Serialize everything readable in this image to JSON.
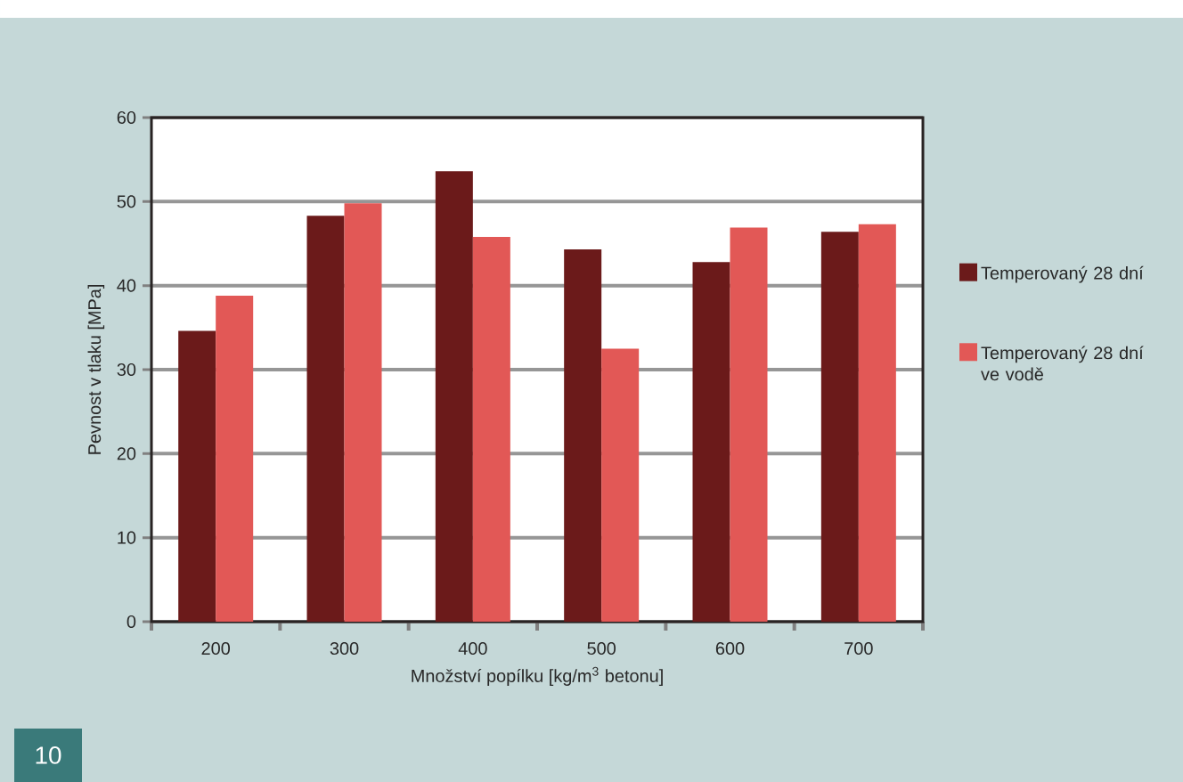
{
  "chart_data": {
    "type": "bar",
    "xlabel": "Množství popílku [kg/m$^{3}$ betonu]",
    "ylabel": "Pevnost v tlaku [MPa]",
    "categories": [
      "200",
      "300",
      "400",
      "500",
      "600",
      "700"
    ],
    "series": [
      {
        "name": "Temperovaný 28 dní",
        "color": "#6b1a1a",
        "values": [
          34.6,
          48.3,
          53.6,
          44.3,
          42.8,
          46.4
        ]
      },
      {
        "name": "Temperovaný 28 dní ve vodě",
        "color": "#e25856",
        "values": [
          38.8,
          49.8,
          45.8,
          32.5,
          46.9,
          47.3
        ]
      }
    ],
    "ylim": [
      0,
      60
    ],
    "yticks": [
      0,
      10,
      20,
      30,
      40,
      50,
      60
    ],
    "grid": "y",
    "legend": "right",
    "annotations": [
      "10"
    ]
  }
}
